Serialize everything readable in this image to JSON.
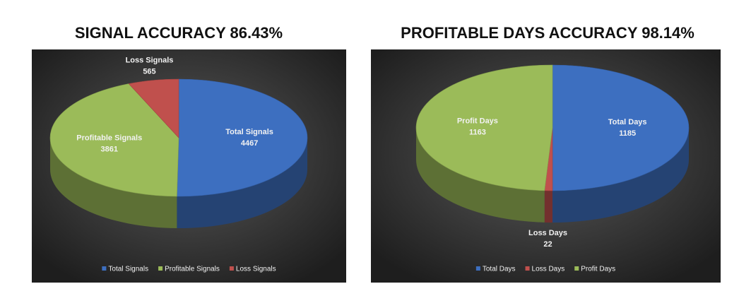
{
  "chart_data": [
    {
      "type": "pie",
      "title": "SIGNAL ACCURACY 86.43%",
      "categories": [
        "Total Signals",
        "Profitable Signals",
        "Loss Signals"
      ],
      "values": [
        4467,
        3861,
        565
      ],
      "colors": [
        "#3d6fc0",
        "#9bbb59",
        "#c0504d"
      ]
    },
    {
      "type": "pie",
      "title": "PROFITABLE DAYS ACCURACY 98.14%",
      "categories": [
        "Total Days",
        "Loss Days",
        "Profit Days"
      ],
      "values": [
        1185,
        22,
        1163
      ],
      "colors": [
        "#3d6fc0",
        "#c0504d",
        "#9bbb59"
      ]
    }
  ]
}
